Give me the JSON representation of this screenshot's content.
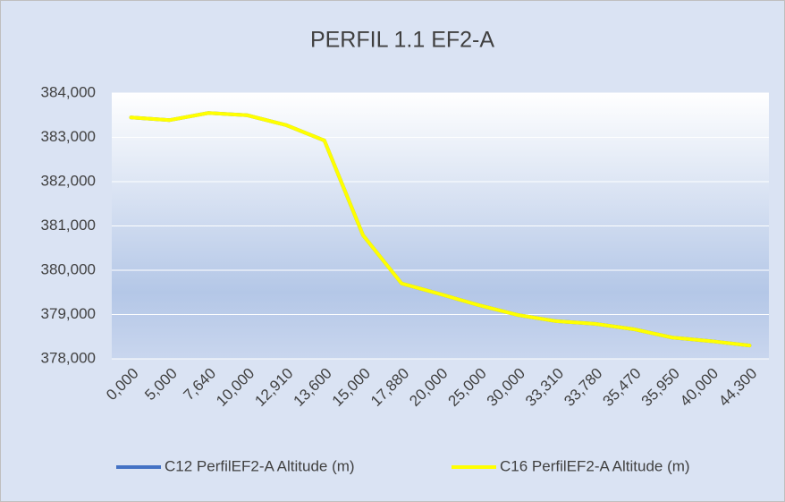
{
  "chart_data": {
    "type": "line",
    "title": "PERFIL 1.1 EF2-A",
    "categories": [
      "0,000",
      "5,000",
      "7,640",
      "10,000",
      "12,910",
      "13,600",
      "15,000",
      "17,880",
      "20,000",
      "25,000",
      "30,000",
      "33,310",
      "33,780",
      "35,470",
      "35,950",
      "40,000",
      "44,300"
    ],
    "series": [
      {
        "name": "C12 PerfilEF2-A Altitude (m)",
        "color": "#4472c4",
        "values": [
          383.45,
          383.39,
          383.55,
          383.5,
          383.28,
          382.93,
          380.79,
          379.7,
          379.46,
          379.21,
          378.99,
          378.85,
          378.79,
          378.67,
          378.48,
          378.4,
          378.3
        ]
      },
      {
        "name": "C16 PerfilEF2-A Altitude (m)",
        "color": "#ffff00",
        "values": [
          383.45,
          383.39,
          383.55,
          383.5,
          383.28,
          382.93,
          380.79,
          379.7,
          379.46,
          379.21,
          378.99,
          378.85,
          378.79,
          378.67,
          378.48,
          378.4,
          378.3
        ]
      }
    ],
    "ylim": [
      378,
      384
    ],
    "yticks": [
      {
        "value": 378,
        "label": "378,000"
      },
      {
        "value": 379,
        "label": "379,000"
      },
      {
        "value": 380,
        "label": "380,000"
      },
      {
        "value": 381,
        "label": "381,000"
      },
      {
        "value": 382,
        "label": "382,000"
      },
      {
        "value": 383,
        "label": "383,000"
      },
      {
        "value": 384,
        "label": "384,000"
      }
    ],
    "grid": true,
    "legend": "bottom"
  }
}
